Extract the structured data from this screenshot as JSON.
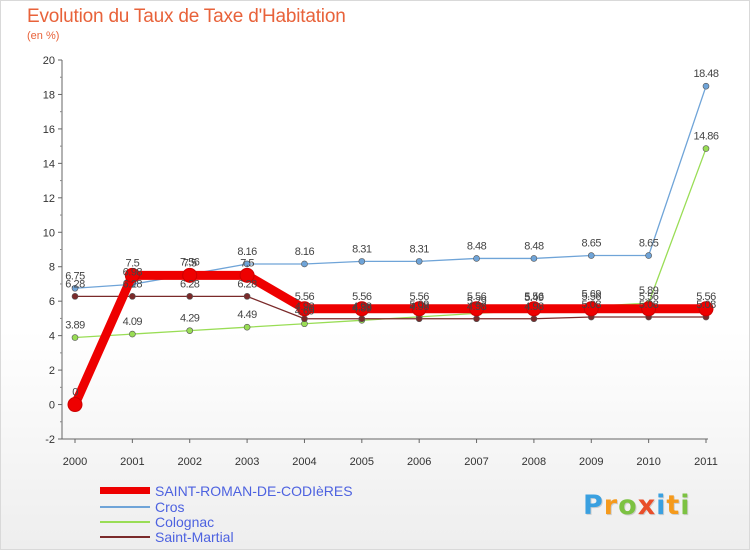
{
  "chart_data": {
    "type": "line",
    "title": "Evolution du Taux de Taxe d'Habitation",
    "subtitle": "(en %)",
    "xlabel": "",
    "ylabel": "",
    "ylim": [
      -2,
      20
    ],
    "yticks": [
      -2,
      0,
      2,
      4,
      6,
      8,
      10,
      12,
      14,
      16,
      18,
      20
    ],
    "x": [
      "2000",
      "2001",
      "2002",
      "2003",
      "2004",
      "2005",
      "2006",
      "2007",
      "2008",
      "2009",
      "2010",
      "2011"
    ],
    "grid": false,
    "legend_position": "bottom-left",
    "series": [
      {
        "name": "SAINT-ROMAN-DE-CODIèRES",
        "color": "#ee0000",
        "values": [
          0,
          7.5,
          7.5,
          7.5,
          5.56,
          5.56,
          5.56,
          5.56,
          5.56,
          5.56,
          5.56,
          5.56
        ],
        "labels": [
          "0",
          "7.5",
          "7.5",
          "7.5",
          "5.56",
          "5.56",
          "5.56",
          "5.56",
          "5.56",
          "5.56",
          "5.56",
          "5.56"
        ]
      },
      {
        "name": "Cros",
        "color": "#6fa4d8",
        "values": [
          6.75,
          6.98,
          7.56,
          8.16,
          8.16,
          8.31,
          8.31,
          8.48,
          8.48,
          8.65,
          8.65,
          18.48
        ],
        "labels": [
          "6.75",
          "6.98",
          "7.56",
          "8.16",
          "8.16",
          "8.31",
          "8.31",
          "8.48",
          "8.48",
          "8.65",
          "8.65",
          "18.48"
        ]
      },
      {
        "name": "Colognac",
        "color": "#99dd55",
        "values": [
          3.89,
          4.09,
          4.29,
          4.49,
          4.69,
          4.89,
          5.09,
          5.29,
          5.49,
          5.69,
          5.89,
          14.86
        ],
        "labels": [
          "3.89",
          "4.09",
          "4.29",
          "4.49",
          "4.69",
          "4.89",
          "5.09",
          "5.29",
          "5.49",
          "5.69",
          "5.89",
          "14.86"
        ]
      },
      {
        "name": "Saint-Martial",
        "color": "#7a2a2a",
        "values": [
          6.28,
          6.28,
          6.28,
          6.28,
          4.98,
          4.98,
          4.98,
          4.98,
          4.98,
          5.08,
          5.08,
          5.08
        ],
        "labels": [
          "6.28",
          "6.28",
          "6.28",
          "6.28",
          "4.98",
          "4.98",
          "4.98",
          "4.98",
          "4.98",
          "5.08",
          "5.08",
          "5.08"
        ]
      }
    ]
  },
  "logo": {
    "text": "Proxiti",
    "letters": [
      "P",
      "r",
      "o",
      "x",
      "i",
      "t",
      "i"
    ],
    "colors": [
      "#3aa0e0",
      "#f59a1c",
      "#7cc242",
      "#e94e2a",
      "#3aa0e0",
      "#f59a1c",
      "#7cc242"
    ]
  }
}
